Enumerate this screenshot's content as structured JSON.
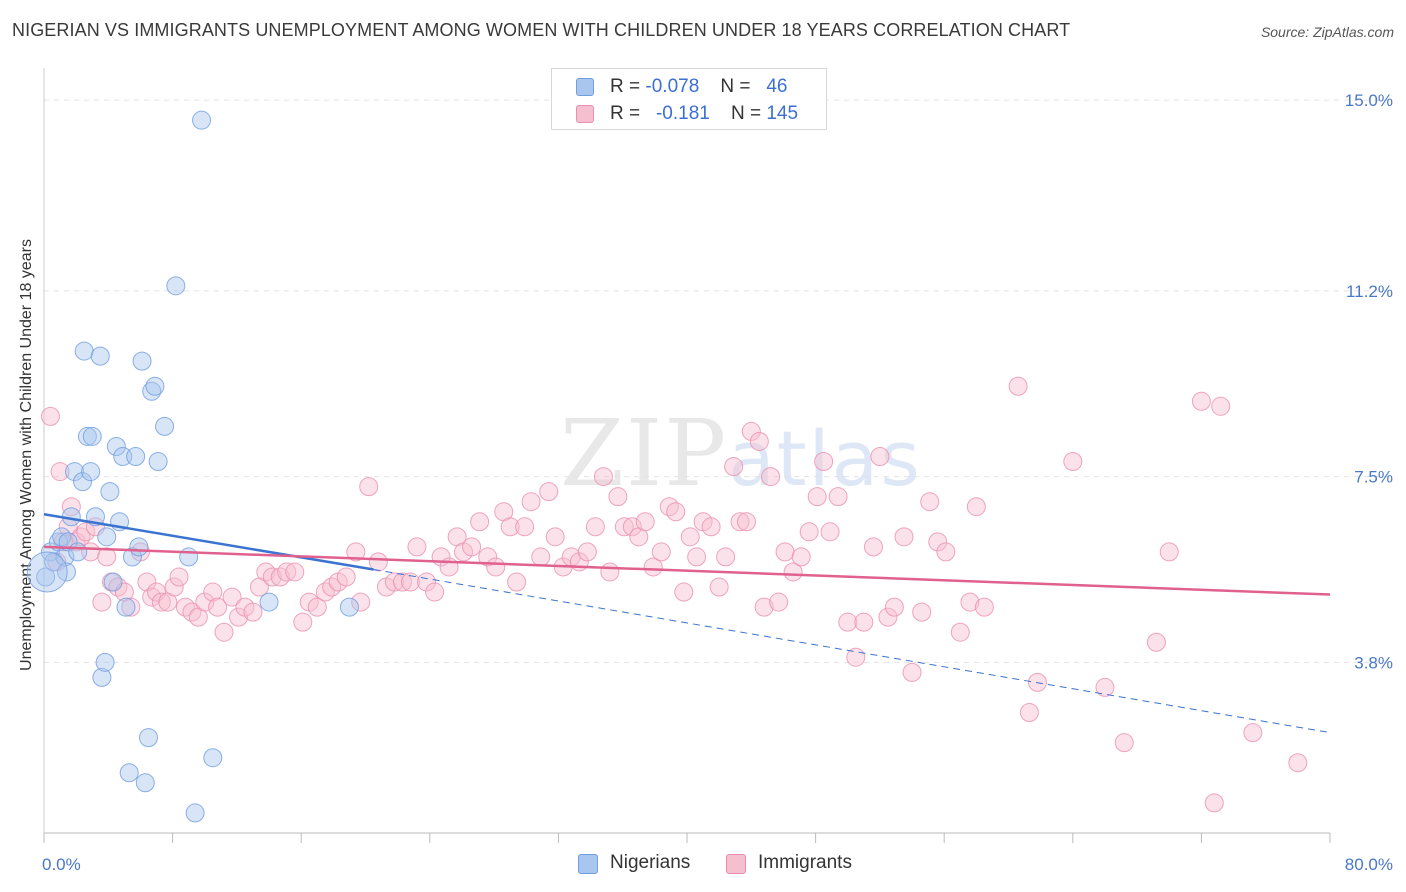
{
  "title": "NIGERIAN VS IMMIGRANTS UNEMPLOYMENT AMONG WOMEN WITH CHILDREN UNDER 18 YEARS CORRELATION CHART",
  "source": "Source: ZipAtlas.com",
  "watermark": {
    "zip": "ZIP",
    "atlas": "atlas"
  },
  "legend": {
    "nigerians": {
      "r_label": "R =",
      "r_value": "-0.078",
      "n_label": "N =",
      "n_value": "46"
    },
    "immigrants": {
      "r_label": "R =",
      "r_value": "-0.181",
      "n_label": "N =",
      "n_value": "145"
    }
  },
  "bottom_legend": {
    "nigerians": "Nigerians",
    "immigrants": "Immigrants"
  },
  "colors": {
    "nigerians_fill": "#a9c6ee",
    "nigerians_stroke": "#6f9ee0",
    "nigerians_line": "#3b73d0",
    "immigrants_fill": "#f6bfd0",
    "immigrants_stroke": "#eb8fb0",
    "immigrants_line": "#e0608e",
    "axis_label": "#4a78c8",
    "grid": "#e2e2e2"
  },
  "chart_data": {
    "type": "scatter",
    "title": "NIGERIAN VS IMMIGRANTS UNEMPLOYMENT AMONG WOMEN WITH CHILDREN UNDER 18 YEARS CORRELATION CHART",
    "xlabel": "",
    "ylabel": "Unemployment Among Women with Children Under 18 years",
    "xlim": [
      0,
      80
    ],
    "ylim": [
      0.4,
      15.5
    ],
    "x_tick_labels": [
      "0.0%",
      "80.0%"
    ],
    "y_ticks": [
      3.8,
      7.5,
      11.2,
      15.0
    ],
    "y_tick_labels": [
      "3.8%",
      "7.5%",
      "11.2%",
      "15.0%"
    ],
    "grid": true,
    "legend_position": "top-center",
    "series": [
      {
        "name": "Nigerians",
        "points": [
          [
            0.1,
            5.5
          ],
          [
            0.4,
            6.0
          ],
          [
            0.6,
            5.8
          ],
          [
            0.9,
            6.2
          ],
          [
            1.1,
            6.3
          ],
          [
            1.3,
            5.9
          ],
          [
            1.4,
            5.6
          ],
          [
            1.5,
            6.2
          ],
          [
            1.7,
            6.7
          ],
          [
            1.9,
            7.6
          ],
          [
            2.1,
            6.0
          ],
          [
            2.4,
            7.4
          ],
          [
            2.5,
            10.0
          ],
          [
            2.7,
            8.3
          ],
          [
            2.9,
            7.6
          ],
          [
            3.0,
            8.3
          ],
          [
            3.2,
            6.7
          ],
          [
            3.5,
            9.9
          ],
          [
            3.6,
            3.5
          ],
          [
            3.8,
            3.8
          ],
          [
            3.9,
            6.3
          ],
          [
            4.1,
            7.2
          ],
          [
            4.3,
            5.4
          ],
          [
            4.5,
            8.1
          ],
          [
            4.7,
            6.6
          ],
          [
            4.9,
            7.9
          ],
          [
            5.1,
            4.9
          ],
          [
            5.3,
            1.6
          ],
          [
            5.5,
            5.9
          ],
          [
            5.7,
            7.9
          ],
          [
            5.9,
            6.1
          ],
          [
            6.1,
            9.8
          ],
          [
            6.3,
            1.4
          ],
          [
            6.5,
            2.3
          ],
          [
            6.7,
            9.2
          ],
          [
            6.9,
            9.3
          ],
          [
            7.1,
            7.8
          ],
          [
            7.5,
            8.5
          ],
          [
            8.2,
            11.3
          ],
          [
            9.0,
            5.9
          ],
          [
            9.4,
            0.8
          ],
          [
            9.8,
            14.6
          ],
          [
            10.5,
            1.9
          ],
          [
            14.0,
            5.0
          ],
          [
            19.0,
            4.9
          ],
          [
            0.2,
            5.6
          ]
        ]
      },
      {
        "name": "Immigrants",
        "points": [
          [
            0.4,
            8.7
          ],
          [
            0.8,
            5.8
          ],
          [
            1.0,
            7.6
          ],
          [
            1.2,
            6.2
          ],
          [
            1.5,
            6.5
          ],
          [
            1.7,
            6.9
          ],
          [
            2.0,
            6.2
          ],
          [
            2.3,
            6.3
          ],
          [
            2.6,
            6.4
          ],
          [
            2.9,
            6.0
          ],
          [
            3.2,
            6.5
          ],
          [
            3.6,
            5.0
          ],
          [
            3.9,
            5.9
          ],
          [
            4.2,
            5.4
          ],
          [
            4.6,
            5.3
          ],
          [
            5.0,
            5.2
          ],
          [
            5.4,
            4.9
          ],
          [
            6.0,
            6.0
          ],
          [
            6.4,
            5.4
          ],
          [
            6.7,
            5.1
          ],
          [
            7.0,
            5.2
          ],
          [
            7.3,
            5.0
          ],
          [
            7.7,
            5.0
          ],
          [
            8.1,
            5.3
          ],
          [
            8.4,
            5.5
          ],
          [
            8.8,
            4.9
          ],
          [
            9.2,
            4.8
          ],
          [
            9.6,
            4.7
          ],
          [
            10.0,
            5.0
          ],
          [
            10.5,
            5.2
          ],
          [
            10.8,
            4.9
          ],
          [
            11.2,
            4.4
          ],
          [
            11.7,
            5.1
          ],
          [
            12.1,
            4.7
          ],
          [
            12.5,
            4.9
          ],
          [
            13.0,
            4.8
          ],
          [
            13.4,
            5.3
          ],
          [
            13.8,
            5.6
          ],
          [
            14.2,
            5.5
          ],
          [
            14.7,
            5.5
          ],
          [
            15.1,
            5.6
          ],
          [
            15.6,
            5.6
          ],
          [
            16.1,
            4.6
          ],
          [
            16.5,
            5.0
          ],
          [
            17.0,
            4.9
          ],
          [
            17.5,
            5.2
          ],
          [
            17.9,
            5.3
          ],
          [
            18.3,
            5.4
          ],
          [
            18.8,
            5.5
          ],
          [
            19.4,
            6.0
          ],
          [
            19.7,
            5.0
          ],
          [
            20.2,
            7.3
          ],
          [
            20.8,
            5.8
          ],
          [
            21.3,
            5.3
          ],
          [
            21.8,
            5.4
          ],
          [
            22.3,
            5.4
          ],
          [
            22.8,
            5.4
          ],
          [
            23.2,
            6.1
          ],
          [
            23.8,
            5.4
          ],
          [
            24.3,
            5.2
          ],
          [
            24.7,
            5.9
          ],
          [
            25.2,
            5.7
          ],
          [
            25.7,
            6.3
          ],
          [
            26.1,
            6.0
          ],
          [
            26.6,
            6.1
          ],
          [
            27.1,
            6.6
          ],
          [
            27.6,
            5.9
          ],
          [
            28.1,
            5.7
          ],
          [
            28.6,
            6.8
          ],
          [
            29.0,
            6.5
          ],
          [
            29.4,
            5.4
          ],
          [
            29.9,
            6.5
          ],
          [
            30.3,
            7.0
          ],
          [
            30.9,
            5.9
          ],
          [
            31.4,
            7.2
          ],
          [
            31.8,
            6.3
          ],
          [
            32.3,
            5.7
          ],
          [
            32.8,
            5.9
          ],
          [
            33.3,
            5.8
          ],
          [
            33.8,
            6.0
          ],
          [
            34.3,
            6.5
          ],
          [
            34.8,
            7.5
          ],
          [
            35.2,
            5.6
          ],
          [
            35.7,
            7.1
          ],
          [
            36.1,
            6.5
          ],
          [
            36.6,
            6.5
          ],
          [
            37.0,
            6.3
          ],
          [
            37.4,
            6.6
          ],
          [
            37.9,
            5.7
          ],
          [
            38.4,
            6.0
          ],
          [
            38.9,
            6.9
          ],
          [
            39.3,
            6.8
          ],
          [
            39.8,
            5.2
          ],
          [
            40.2,
            6.3
          ],
          [
            40.6,
            5.9
          ],
          [
            41.0,
            6.6
          ],
          [
            41.5,
            6.5
          ],
          [
            42.0,
            5.3
          ],
          [
            42.4,
            5.9
          ],
          [
            42.9,
            7.7
          ],
          [
            43.3,
            6.6
          ],
          [
            43.7,
            6.6
          ],
          [
            44.0,
            8.4
          ],
          [
            44.5,
            8.2
          ],
          [
            44.8,
            4.9
          ],
          [
            45.2,
            7.5
          ],
          [
            45.7,
            5.0
          ],
          [
            46.1,
            6.0
          ],
          [
            46.6,
            5.6
          ],
          [
            47.1,
            5.9
          ],
          [
            47.6,
            6.4
          ],
          [
            48.1,
            7.1
          ],
          [
            48.5,
            7.8
          ],
          [
            48.9,
            6.4
          ],
          [
            49.4,
            7.1
          ],
          [
            50.0,
            4.6
          ],
          [
            50.5,
            3.9
          ],
          [
            51.0,
            4.6
          ],
          [
            51.6,
            6.1
          ],
          [
            52.0,
            7.9
          ],
          [
            52.5,
            4.7
          ],
          [
            52.9,
            4.9
          ],
          [
            53.5,
            6.3
          ],
          [
            54.0,
            3.6
          ],
          [
            54.6,
            4.8
          ],
          [
            55.1,
            7.0
          ],
          [
            55.6,
            6.2
          ],
          [
            56.1,
            6.0
          ],
          [
            57.0,
            4.4
          ],
          [
            57.6,
            5.0
          ],
          [
            58.0,
            6.9
          ],
          [
            58.5,
            4.9
          ],
          [
            60.6,
            9.3
          ],
          [
            61.3,
            2.8
          ],
          [
            61.8,
            3.4
          ],
          [
            64.0,
            7.8
          ],
          [
            66.0,
            3.3
          ],
          [
            67.2,
            2.2
          ],
          [
            69.2,
            4.2
          ],
          [
            70.0,
            6.0
          ],
          [
            72.0,
            9.0
          ],
          [
            72.8,
            1.0
          ],
          [
            73.2,
            8.9
          ],
          [
            75.2,
            2.4
          ],
          [
            78.0,
            1.8
          ]
        ]
      }
    ],
    "trendlines": [
      {
        "name": "Nigerians",
        "x": [
          0,
          20.5
        ],
        "y": [
          6.75,
          5.65
        ],
        "dashed_extension_to": [
          80,
          2.4
        ]
      },
      {
        "name": "Immigrants",
        "x": [
          0,
          80
        ],
        "y": [
          6.1,
          5.15
        ]
      }
    ]
  }
}
